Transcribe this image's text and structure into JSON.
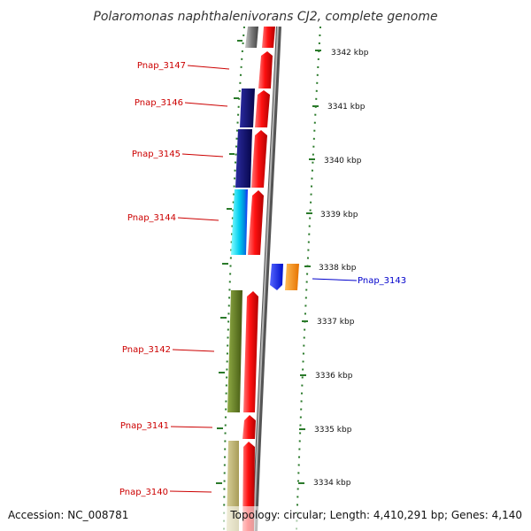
{
  "title": "Polaromonas naphthalenivorans CJ2, complete genome",
  "footer": {
    "accession": "Accession: NC_008781",
    "summary": "Topology: circular; Length: 4,410,291 bp; Genes: 4,140"
  },
  "kbp_labels": [
    "3342 kbp",
    "3341 kbp",
    "3340 kbp",
    "3339 kbp",
    "3338 kbp",
    "3337 kbp",
    "3336 kbp",
    "3335 kbp",
    "3334 kbp"
  ],
  "gene_labels": [
    {
      "text": "Pnap_3147",
      "color": "#cc0000"
    },
    {
      "text": "Pnap_3146",
      "color": "#cc0000"
    },
    {
      "text": "Pnap_3145",
      "color": "#cc0000"
    },
    {
      "text": "Pnap_3144",
      "color": "#cc0000"
    },
    {
      "text": "Pnap_3143",
      "color": "#0000cc"
    },
    {
      "text": "Pnap_3142",
      "color": "#cc0000"
    },
    {
      "text": "Pnap_3141",
      "color": "#cc0000"
    },
    {
      "text": "Pnap_3140",
      "color": "#cc0000"
    }
  ],
  "colors": {
    "cds_red": "#ee1111",
    "navy": "#0a0a6e",
    "cyan": "#00ccee",
    "blue": "#1a2aff",
    "orange": "#ff8800",
    "olive": "#5e7a1e",
    "khaki": "#bdb270",
    "gray": "#7a7a7a",
    "dot_green": "#2a7a2a"
  }
}
